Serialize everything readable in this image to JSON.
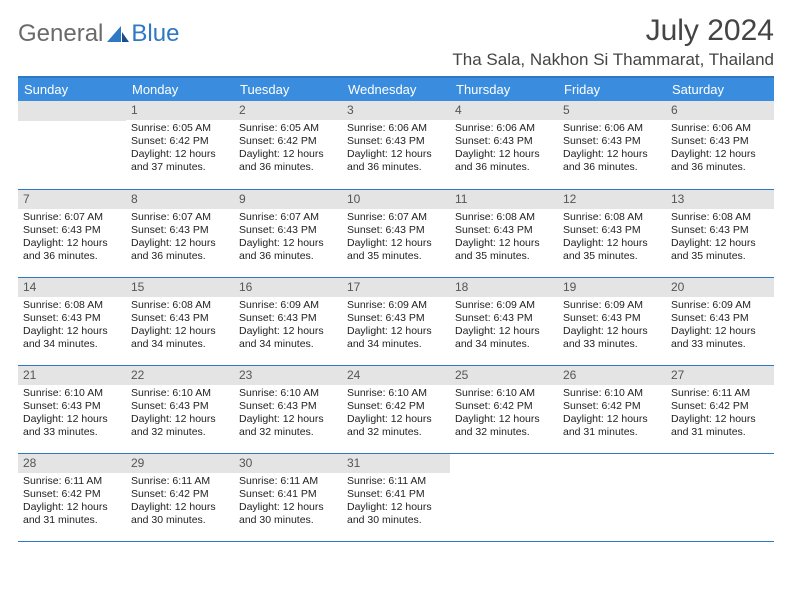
{
  "brand": {
    "part1": "General",
    "part2": "Blue"
  },
  "title": "July 2024",
  "location": "Tha Sala, Nakhon Si Thammarat, Thailand",
  "colors": {
    "header_bg": "#3a8dde",
    "header_text": "#ffffff",
    "daynum_bg": "#e4e4e4",
    "rule": "#2f78c3",
    "text": "#222222"
  },
  "weekdays": [
    "Sunday",
    "Monday",
    "Tuesday",
    "Wednesday",
    "Thursday",
    "Friday",
    "Saturday"
  ],
  "start_weekday": 1,
  "days": [
    {
      "n": 1,
      "sunrise": "6:05 AM",
      "sunset": "6:42 PM",
      "daylight": "12 hours and 37 minutes."
    },
    {
      "n": 2,
      "sunrise": "6:05 AM",
      "sunset": "6:42 PM",
      "daylight": "12 hours and 36 minutes."
    },
    {
      "n": 3,
      "sunrise": "6:06 AM",
      "sunset": "6:43 PM",
      "daylight": "12 hours and 36 minutes."
    },
    {
      "n": 4,
      "sunrise": "6:06 AM",
      "sunset": "6:43 PM",
      "daylight": "12 hours and 36 minutes."
    },
    {
      "n": 5,
      "sunrise": "6:06 AM",
      "sunset": "6:43 PM",
      "daylight": "12 hours and 36 minutes."
    },
    {
      "n": 6,
      "sunrise": "6:06 AM",
      "sunset": "6:43 PM",
      "daylight": "12 hours and 36 minutes."
    },
    {
      "n": 7,
      "sunrise": "6:07 AM",
      "sunset": "6:43 PM",
      "daylight": "12 hours and 36 minutes."
    },
    {
      "n": 8,
      "sunrise": "6:07 AM",
      "sunset": "6:43 PM",
      "daylight": "12 hours and 36 minutes."
    },
    {
      "n": 9,
      "sunrise": "6:07 AM",
      "sunset": "6:43 PM",
      "daylight": "12 hours and 36 minutes."
    },
    {
      "n": 10,
      "sunrise": "6:07 AM",
      "sunset": "6:43 PM",
      "daylight": "12 hours and 35 minutes."
    },
    {
      "n": 11,
      "sunrise": "6:08 AM",
      "sunset": "6:43 PM",
      "daylight": "12 hours and 35 minutes."
    },
    {
      "n": 12,
      "sunrise": "6:08 AM",
      "sunset": "6:43 PM",
      "daylight": "12 hours and 35 minutes."
    },
    {
      "n": 13,
      "sunrise": "6:08 AM",
      "sunset": "6:43 PM",
      "daylight": "12 hours and 35 minutes."
    },
    {
      "n": 14,
      "sunrise": "6:08 AM",
      "sunset": "6:43 PM",
      "daylight": "12 hours and 34 minutes."
    },
    {
      "n": 15,
      "sunrise": "6:08 AM",
      "sunset": "6:43 PM",
      "daylight": "12 hours and 34 minutes."
    },
    {
      "n": 16,
      "sunrise": "6:09 AM",
      "sunset": "6:43 PM",
      "daylight": "12 hours and 34 minutes."
    },
    {
      "n": 17,
      "sunrise": "6:09 AM",
      "sunset": "6:43 PM",
      "daylight": "12 hours and 34 minutes."
    },
    {
      "n": 18,
      "sunrise": "6:09 AM",
      "sunset": "6:43 PM",
      "daylight": "12 hours and 34 minutes."
    },
    {
      "n": 19,
      "sunrise": "6:09 AM",
      "sunset": "6:43 PM",
      "daylight": "12 hours and 33 minutes."
    },
    {
      "n": 20,
      "sunrise": "6:09 AM",
      "sunset": "6:43 PM",
      "daylight": "12 hours and 33 minutes."
    },
    {
      "n": 21,
      "sunrise": "6:10 AM",
      "sunset": "6:43 PM",
      "daylight": "12 hours and 33 minutes."
    },
    {
      "n": 22,
      "sunrise": "6:10 AM",
      "sunset": "6:43 PM",
      "daylight": "12 hours and 32 minutes."
    },
    {
      "n": 23,
      "sunrise": "6:10 AM",
      "sunset": "6:43 PM",
      "daylight": "12 hours and 32 minutes."
    },
    {
      "n": 24,
      "sunrise": "6:10 AM",
      "sunset": "6:42 PM",
      "daylight": "12 hours and 32 minutes."
    },
    {
      "n": 25,
      "sunrise": "6:10 AM",
      "sunset": "6:42 PM",
      "daylight": "12 hours and 32 minutes."
    },
    {
      "n": 26,
      "sunrise": "6:10 AM",
      "sunset": "6:42 PM",
      "daylight": "12 hours and 31 minutes."
    },
    {
      "n": 27,
      "sunrise": "6:11 AM",
      "sunset": "6:42 PM",
      "daylight": "12 hours and 31 minutes."
    },
    {
      "n": 28,
      "sunrise": "6:11 AM",
      "sunset": "6:42 PM",
      "daylight": "12 hours and 31 minutes."
    },
    {
      "n": 29,
      "sunrise": "6:11 AM",
      "sunset": "6:42 PM",
      "daylight": "12 hours and 30 minutes."
    },
    {
      "n": 30,
      "sunrise": "6:11 AM",
      "sunset": "6:41 PM",
      "daylight": "12 hours and 30 minutes."
    },
    {
      "n": 31,
      "sunrise": "6:11 AM",
      "sunset": "6:41 PM",
      "daylight": "12 hours and 30 minutes."
    }
  ],
  "labels": {
    "sunrise": "Sunrise:",
    "sunset": "Sunset:",
    "daylight": "Daylight:"
  }
}
